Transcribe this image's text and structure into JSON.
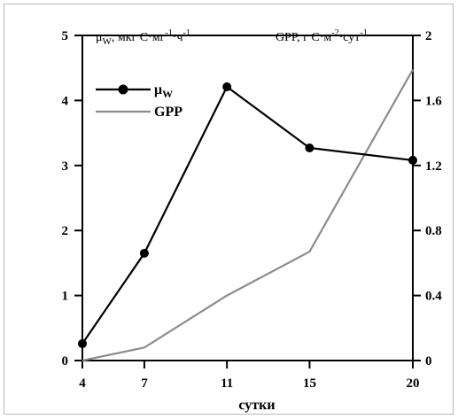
{
  "chart_data": {
    "type": "line",
    "x": [
      4,
      7,
      11,
      15,
      20
    ],
    "categories": [
      "4",
      "7",
      "11",
      "15",
      "20"
    ],
    "xlabel": "сутки",
    "series": [
      {
        "name": "μW",
        "axis": "left",
        "color": "#000000",
        "marker": "circle",
        "values": [
          0.26,
          1.65,
          4.21,
          3.27,
          3.08
        ]
      },
      {
        "name": "GPP",
        "axis": "right",
        "color": "#8c8c8c",
        "marker": "none",
        "values": [
          0.0,
          0.08,
          0.4,
          0.67,
          1.79
        ]
      }
    ],
    "y_left": {
      "label_main": "μ",
      "label_sub": "W",
      "label_rest": ", мкг С·мг",
      "label_sup1": "-1",
      "label_mid": "·ч",
      "label_sup2": "-1",
      "lim": [
        0,
        5
      ],
      "ticks": [
        "0",
        "1",
        "2",
        "3",
        "4",
        "5"
      ]
    },
    "y_right": {
      "label_a": "GPP, г С·м",
      "label_sup1": "-2",
      "label_b": "·сут",
      "label_sup2": "-1",
      "lim": [
        0,
        2
      ],
      "ticks": [
        "0",
        "0.4",
        "0.8",
        "1.2",
        "1.6",
        "2"
      ]
    },
    "legend": {
      "position": "top-left",
      "item1_main": "μ",
      "item1_sub": "W",
      "item2": "GPP"
    },
    "grid": false
  }
}
